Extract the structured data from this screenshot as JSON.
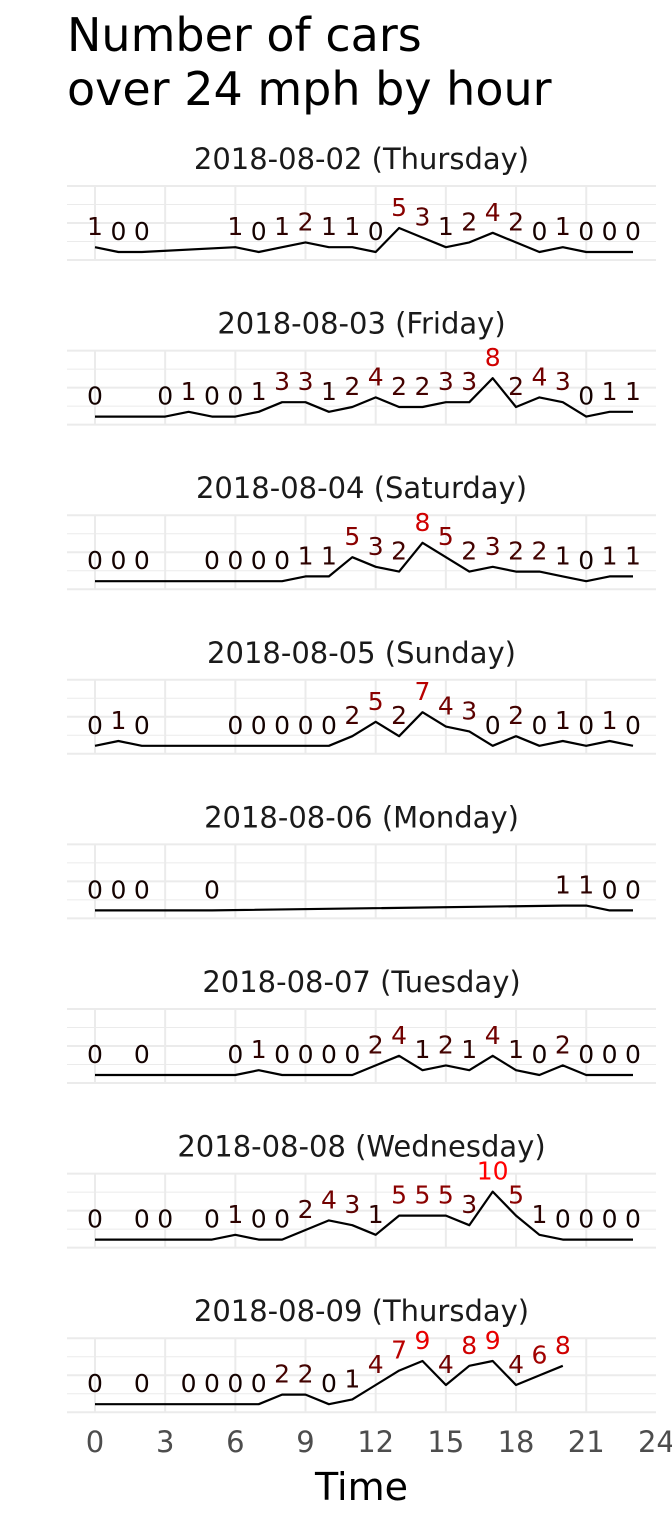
{
  "title_lines": [
    "Number of cars",
    "over 24 mph by hour"
  ],
  "chart_data": {
    "type": "line",
    "title": "Number of cars over 24 mph by hour",
    "xlabel": "Time",
    "ylabel": "",
    "xlim": [
      0,
      24
    ],
    "x_ticks": [
      0,
      3,
      6,
      9,
      12,
      15,
      18,
      21,
      24
    ],
    "ylim": [
      0,
      10
    ],
    "grid": true,
    "value_labels": true,
    "label_color_scale": {
      "low": "#000000",
      "high": "#ff0000"
    },
    "panels": [
      {
        "title": "2018-08-02 (Thursday)",
        "x": [
          0,
          1,
          2,
          6,
          7,
          8,
          9,
          10,
          11,
          12,
          13,
          14,
          15,
          16,
          17,
          18,
          19,
          20,
          21,
          22,
          23
        ],
        "y": [
          1,
          0,
          0,
          1,
          0,
          1,
          2,
          1,
          1,
          0,
          5,
          3,
          1,
          2,
          4,
          2,
          0,
          1,
          0,
          0,
          0
        ]
      },
      {
        "title": "2018-08-03 (Friday)",
        "x": [
          0,
          3,
          4,
          5,
          6,
          7,
          8,
          9,
          10,
          11,
          12,
          13,
          14,
          15,
          16,
          17,
          18,
          19,
          20,
          21,
          22,
          23
        ],
        "y": [
          0,
          0,
          1,
          0,
          0,
          1,
          3,
          3,
          1,
          2,
          4,
          2,
          2,
          3,
          3,
          8,
          2,
          4,
          3,
          0,
          1,
          1
        ]
      },
      {
        "title": "2018-08-04 (Saturday)",
        "x": [
          0,
          1,
          2,
          5,
          6,
          7,
          8,
          9,
          10,
          11,
          12,
          13,
          14,
          15,
          16,
          17,
          18,
          19,
          20,
          21,
          22,
          23
        ],
        "y": [
          0,
          0,
          0,
          0,
          0,
          0,
          0,
          1,
          1,
          5,
          3,
          2,
          8,
          5,
          2,
          3,
          2,
          2,
          1,
          0,
          1,
          1
        ]
      },
      {
        "title": "2018-08-05 (Sunday)",
        "x": [
          0,
          1,
          2,
          6,
          7,
          8,
          9,
          10,
          11,
          12,
          13,
          14,
          15,
          16,
          17,
          18,
          19,
          20,
          21,
          22,
          23
        ],
        "y": [
          0,
          1,
          0,
          0,
          0,
          0,
          0,
          0,
          2,
          5,
          2,
          7,
          4,
          3,
          0,
          2,
          0,
          1,
          0,
          1,
          0
        ]
      },
      {
        "title": "2018-08-06 (Monday)",
        "x": [
          0,
          1,
          2,
          5,
          20,
          21,
          22,
          23
        ],
        "y": [
          0,
          0,
          0,
          0,
          1,
          1,
          0,
          0
        ]
      },
      {
        "title": "2018-08-07 (Tuesday)",
        "x": [
          0,
          2,
          6,
          7,
          8,
          9,
          10,
          11,
          12,
          13,
          14,
          15,
          16,
          17,
          18,
          19,
          20,
          21,
          22,
          23
        ],
        "y": [
          0,
          0,
          0,
          1,
          0,
          0,
          0,
          0,
          2,
          4,
          1,
          2,
          1,
          4,
          1,
          0,
          2,
          0,
          0,
          0
        ]
      },
      {
        "title": "2018-08-08 (Wednesday)",
        "x": [
          0,
          2,
          3,
          5,
          6,
          7,
          8,
          9,
          10,
          11,
          12,
          13,
          14,
          15,
          16,
          17,
          18,
          19,
          20,
          21,
          22,
          23
        ],
        "y": [
          0,
          0,
          0,
          0,
          1,
          0,
          0,
          2,
          4,
          3,
          1,
          5,
          5,
          5,
          3,
          10,
          5,
          1,
          0,
          0,
          0,
          0
        ]
      },
      {
        "title": "2018-08-09 (Thursday)",
        "x": [
          0,
          2,
          4,
          5,
          6,
          7,
          8,
          9,
          10,
          11,
          12,
          13,
          14,
          15,
          16,
          17,
          18,
          19,
          20
        ],
        "y": [
          0,
          0,
          0,
          0,
          0,
          0,
          2,
          2,
          0,
          1,
          4,
          7,
          9,
          4,
          8,
          9,
          4,
          6,
          8
        ]
      }
    ]
  }
}
